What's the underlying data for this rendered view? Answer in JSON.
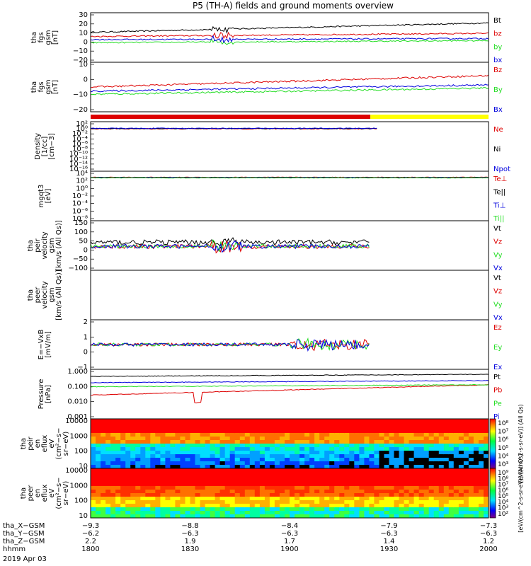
{
  "title": "P5 (TH-A) fields and ground moments overview",
  "colors": {
    "black": "#000000",
    "red": "#dd0000",
    "green": "#22dd22",
    "blue": "#0000dd",
    "yellow": "#ffff00"
  },
  "chart_data": [
    {
      "type": "line",
      "ylabel": [
        "tha",
        "fgs",
        "gsm",
        "[nT]"
      ],
      "ylim": [
        -20,
        30
      ],
      "yticks": [
        "30",
        "20",
        "10",
        "0",
        "−10",
        "−20"
      ],
      "series": [
        {
          "name": "Bt",
          "color": "black"
        },
        {
          "name": "bz",
          "color": "red"
        },
        {
          "name": "by",
          "color": "green"
        },
        {
          "name": "bx",
          "color": "blue"
        }
      ]
    },
    {
      "type": "line",
      "ylabel": [
        "tha",
        "fgs",
        "gsm",
        "[nT]"
      ],
      "ylim": [
        -20,
        10
      ],
      "yticks": [
        "10",
        "0",
        "−10",
        "−20"
      ],
      "series": [
        {
          "name": "Bz",
          "color": "red"
        },
        {
          "name": "By",
          "color": "green"
        },
        {
          "name": "Bx",
          "color": "blue"
        }
      ]
    },
    {
      "type": "line",
      "ylabel": [
        "Density",
        "[1/cc]",
        "[cm−3]"
      ],
      "log": true,
      "yticks": [
        "10²",
        "10⁰",
        "10⁻²",
        "10⁻⁴",
        "10⁻⁶",
        "10⁻⁸",
        "10⁻¹⁰",
        "10⁻¹²",
        "10⁻¹⁴",
        "10⁻¹⁶"
      ],
      "series": [
        {
          "name": "Ne",
          "color": "red"
        },
        {
          "name": "Ni",
          "color": "black"
        },
        {
          "name": "Npot",
          "color": "blue"
        }
      ]
    },
    {
      "type": "line",
      "ylabel": [
        "mgqt3",
        "[eV]"
      ],
      "log": true,
      "yticks": [
        "10⁴",
        "10²",
        "10⁰",
        "10⁻²",
        "10⁻⁴",
        "10⁻⁶",
        "10⁻⁸"
      ],
      "series": [
        {
          "name": "Te⊥",
          "color": "red"
        },
        {
          "name": "Te||",
          "color": "black"
        },
        {
          "name": "Ti⊥",
          "color": "blue"
        },
        {
          "name": "Ti||",
          "color": "green"
        }
      ]
    },
    {
      "type": "line",
      "ylabel": [
        "tha",
        "peir",
        "velocity",
        "gsm",
        "[km/s (All Qs)]"
      ],
      "ylim": [
        -100,
        150
      ],
      "yticks": [
        "150",
        "100",
        "50",
        "0",
        "−50",
        "−100"
      ],
      "series": [
        {
          "name": "Vt",
          "color": "black"
        },
        {
          "name": "Vz",
          "color": "red"
        },
        {
          "name": "Vy",
          "color": "green"
        },
        {
          "name": "Vx",
          "color": "blue"
        }
      ]
    },
    {
      "type": "line",
      "ylabel": [
        "tha",
        "peer",
        "velocity",
        "gsm",
        "[km/s (All Qs)]"
      ],
      "series": [
        {
          "name": "Vt",
          "color": "black"
        },
        {
          "name": "Vz",
          "color": "red"
        },
        {
          "name": "Vy",
          "color": "green"
        },
        {
          "name": "Vx",
          "color": "blue"
        }
      ]
    },
    {
      "type": "line",
      "ylabel": [
        "E=−VxB",
        "[mV/m]"
      ],
      "ylim": [
        -1,
        2
      ],
      "yticks": [
        "2",
        "1",
        "0",
        "−1"
      ],
      "series": [
        {
          "name": "Ez",
          "color": "red"
        },
        {
          "name": "Ey",
          "color": "green"
        },
        {
          "name": "Ex",
          "color": "blue"
        }
      ]
    },
    {
      "type": "line",
      "ylabel": [
        "Pressure",
        "[nPa]"
      ],
      "log": true,
      "yticks": [
        "1.000",
        "0.100",
        "0.010",
        "0.001"
      ],
      "series": [
        {
          "name": "Pt",
          "color": "black"
        },
        {
          "name": "Pb",
          "color": "red"
        },
        {
          "name": "Pe",
          "color": "green"
        },
        {
          "name": "Pi",
          "color": "blue"
        }
      ]
    },
    {
      "type": "heatmap",
      "ylabel": [
        "tha",
        "peir",
        "en",
        "eflux",
        "eV",
        "(cm²−s−",
        "sr−eV)"
      ],
      "yticks": [
        "10000",
        "1000",
        "100",
        "10"
      ],
      "colorbar": {
        "ticks": [
          "10⁸",
          "10⁷",
          "10⁶",
          "10⁵",
          "10⁴",
          "10³"
        ],
        "label": "[eV/(cm^2-s-sr-eV)] (All Qs)"
      }
    },
    {
      "type": "heatmap",
      "ylabel": [
        "tha",
        "peer",
        "en",
        "eflux",
        "eV",
        "(cm²−s−",
        "sr−eV)"
      ],
      "yticks": [
        "10000",
        "1000",
        "100",
        "10"
      ],
      "colorbar": {
        "ticks": [
          "10⁹",
          "10⁸",
          "10⁷",
          "10⁶",
          "10⁵",
          "10⁴",
          "10³",
          "10²"
        ],
        "label": "[eV/(cm^2-s-sr-eV)] (All Qs)"
      }
    }
  ],
  "xaxis": {
    "rows": [
      {
        "label": "tha_X−GSM",
        "values": [
          "−9.3",
          "−8.8",
          "−8.4",
          "−7.9",
          "−7.3"
        ]
      },
      {
        "label": "tha_Y−GSM",
        "values": [
          "−6.2",
          "−6.3",
          "−6.3",
          "−6.3",
          "−6.3"
        ]
      },
      {
        "label": "tha_Z−GSM",
        "values": [
          "2.2",
          "1.9",
          "1.7",
          "1.4",
          "1.2"
        ]
      },
      {
        "label": "hhmm",
        "values": [
          "1800",
          "1830",
          "1900",
          "1930",
          "2000"
        ]
      }
    ],
    "date": "2019 Apr 03"
  }
}
